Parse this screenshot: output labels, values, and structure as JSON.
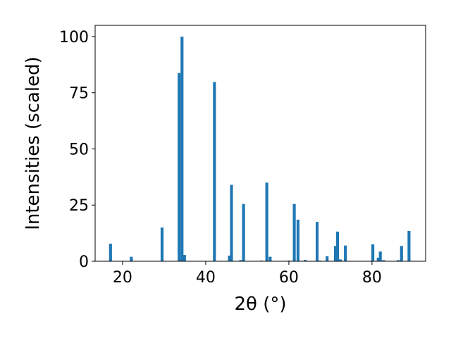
{
  "chart_data": {
    "type": "bar",
    "title": "",
    "xlabel": "2θ (°)",
    "ylabel": "Intensities (scaled)",
    "xlim": [
      13.4,
      92.9
    ],
    "ylim": [
      0,
      105
    ],
    "x_ticks": [
      20,
      40,
      60,
      80
    ],
    "y_ticks": [
      0,
      25,
      50,
      75,
      100
    ],
    "grid": false,
    "legend": "none",
    "bar_width": 0.7,
    "bar_color": "#1f77b4",
    "series": [
      {
        "x": [
          17.1,
          22.1,
          29.5,
          33.6,
          34.3,
          34.9,
          42.1,
          45.7,
          46.2,
          48.4,
          49.1,
          53.4,
          54.7,
          55.5,
          60.0,
          61.3,
          62.2,
          63.9,
          66.8,
          67.5,
          69.2,
          71.2,
          71.7,
          72.4,
          73.6,
          80.2,
          81.5,
          82.0,
          82.8,
          86.3,
          87.1,
          88.9
        ],
        "values": [
          7.8,
          2.0,
          15.0,
          83.8,
          100.0,
          2.8,
          79.8,
          2.5,
          34.0,
          0.5,
          25.5,
          0.3,
          35.0,
          2.0,
          0.3,
          25.5,
          18.5,
          0.6,
          17.5,
          0.3,
          2.2,
          6.8,
          13.2,
          0.8,
          7.0,
          7.5,
          1.6,
          4.3,
          0.5,
          0.5,
          6.8,
          13.5
        ]
      }
    ]
  }
}
